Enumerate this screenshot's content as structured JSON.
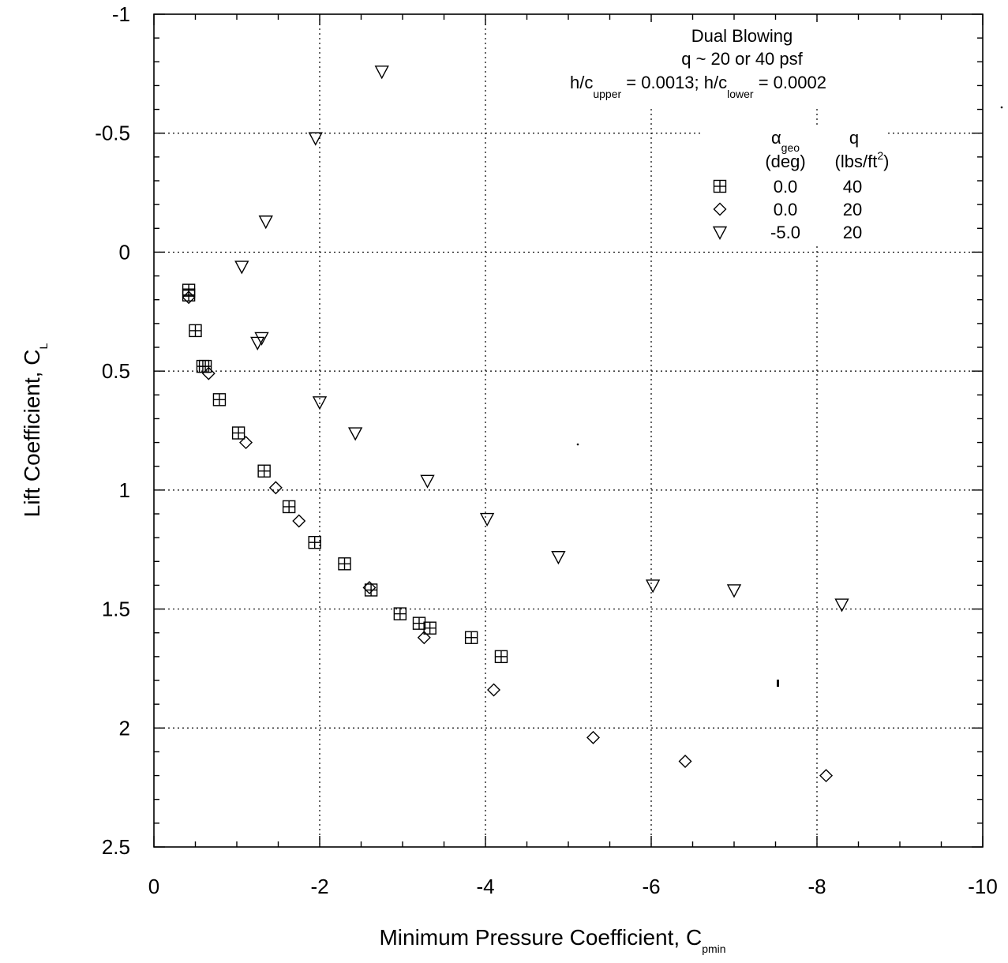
{
  "chart_data": {
    "type": "scatter",
    "xlabel": "Minimum Pressure Coefficient,  C",
    "xlabel_sub": "pmin",
    "ylabel": "Lift Coefficient, C",
    "ylabel_sub": "L",
    "xlim": [
      0,
      -10
    ],
    "ylim": [
      -1,
      2.5
    ],
    "x_ticks": [
      "0",
      "-2",
      "-4",
      "-6",
      "-8",
      "-10"
    ],
    "y_ticks": [
      "-1",
      "-0.5",
      "0",
      "0.5",
      "1",
      "1.5",
      "2",
      "2.5"
    ],
    "grid": "dotted",
    "annotation": {
      "line1": "Dual Blowing",
      "line2": "q ~ 20 or 40 psf",
      "line3_a": "h/c",
      "line3_sub1": "upper",
      "line3_b": " =  0.0013; h/c",
      "line3_sub2": "lower",
      "line3_c": " =  0.0002"
    },
    "legend": {
      "col1_title": "α",
      "col1_title_sub": "geo",
      "col1_units": "(deg)",
      "col2_title": "q",
      "col2_units_a": "(lbs/ft",
      "col2_units_sup": "2",
      "col2_units_b": ")",
      "rows": [
        {
          "marker": "square-plus",
          "alpha": "0.0",
          "q": "40"
        },
        {
          "marker": "diamond",
          "alpha": "0.0",
          "q": "20"
        },
        {
          "marker": "triangle-down",
          "alpha": "-5.0",
          "q": "20"
        }
      ]
    },
    "series": [
      {
        "marker": "square-plus",
        "points": [
          [
            -0.42,
            0.16
          ],
          [
            -0.42,
            0.18
          ],
          [
            -0.5,
            0.33
          ],
          [
            -0.59,
            0.48
          ],
          [
            -0.62,
            0.48
          ],
          [
            -0.79,
            0.62
          ],
          [
            -1.02,
            0.76
          ],
          [
            -1.33,
            0.92
          ],
          [
            -1.63,
            1.07
          ],
          [
            -1.94,
            1.22
          ],
          [
            -2.3,
            1.31
          ],
          [
            -2.62,
            1.42
          ],
          [
            -2.97,
            1.52
          ],
          [
            -3.2,
            1.56
          ],
          [
            -3.33,
            1.58
          ],
          [
            -3.83,
            1.62
          ],
          [
            -4.19,
            1.7
          ]
        ]
      },
      {
        "marker": "diamond",
        "points": [
          [
            -0.42,
            0.19
          ],
          [
            -0.66,
            0.51
          ],
          [
            -1.11,
            0.8
          ],
          [
            -1.47,
            0.99
          ],
          [
            -1.75,
            1.13
          ],
          [
            -2.6,
            1.41
          ],
          [
            -3.26,
            1.62
          ],
          [
            -4.1,
            1.84
          ],
          [
            -5.3,
            2.04
          ],
          [
            -6.41,
            2.14
          ],
          [
            -8.11,
            2.2
          ]
        ]
      },
      {
        "marker": "triangle-down",
        "points": [
          [
            -2.75,
            -0.76
          ],
          [
            -1.95,
            -0.48
          ],
          [
            -1.35,
            -0.13
          ],
          [
            -1.06,
            0.06
          ],
          [
            -1.3,
            0.36
          ],
          [
            -1.25,
            0.38
          ],
          [
            -2.0,
            0.63
          ],
          [
            -2.43,
            0.76
          ],
          [
            -3.3,
            0.96
          ],
          [
            -4.02,
            1.12
          ],
          [
            -4.88,
            1.28
          ],
          [
            -6.02,
            1.4
          ],
          [
            -7.0,
            1.42
          ],
          [
            -8.3,
            1.48
          ]
        ]
      }
    ]
  }
}
